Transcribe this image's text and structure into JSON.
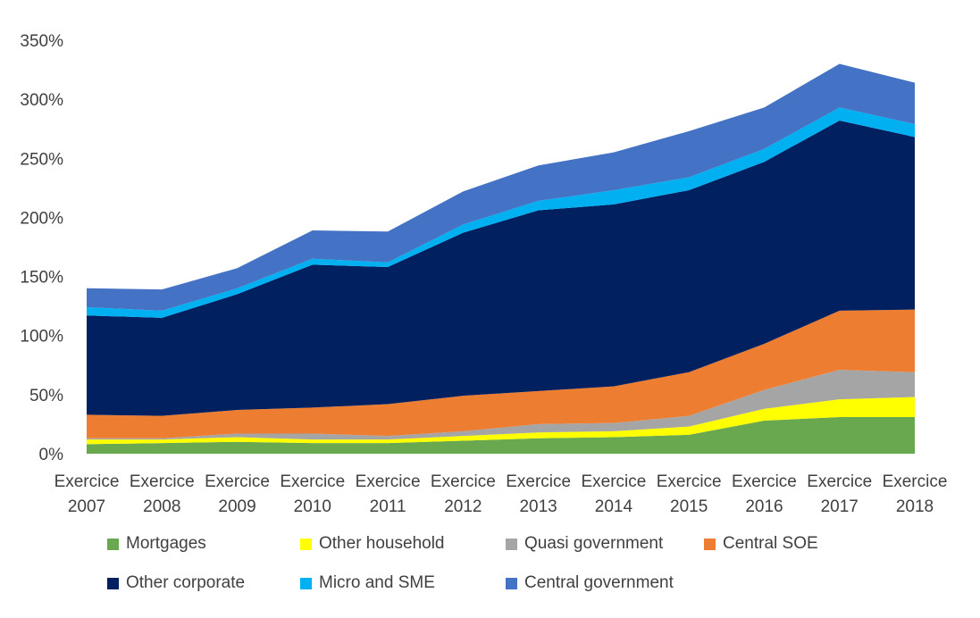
{
  "chart_data": {
    "type": "area",
    "stacked": true,
    "categories": [
      "Exercice 2007",
      "Exercice 2008",
      "Exercice 2009",
      "Exercice 2010",
      "Exercice 2011",
      "Exercice 2012",
      "Exercice 2013",
      "Exercice 2014",
      "Exercice 2015",
      "Exercice 2016",
      "Exercice 2017",
      "Exercice 2018"
    ],
    "category_lines": [
      [
        "Exercice",
        "2007"
      ],
      [
        "Exercice",
        "2008"
      ],
      [
        "Exercice",
        "2009"
      ],
      [
        "Exercice",
        "2010"
      ],
      [
        "Exercice",
        "2011"
      ],
      [
        "Exercice",
        "2012"
      ],
      [
        "Exercice",
        "2013"
      ],
      [
        "Exercice",
        "2014"
      ],
      [
        "Exercice",
        "2015"
      ],
      [
        "Exercice",
        "2016"
      ],
      [
        "Exercice",
        "2017"
      ],
      [
        "Exercice",
        "2018"
      ]
    ],
    "ylim": [
      0,
      350
    ],
    "yticks": [
      0,
      50,
      100,
      150,
      200,
      250,
      300,
      350
    ],
    "ytick_labels": [
      "0%",
      "50%",
      "100%",
      "150%",
      "200%",
      "250%",
      "300%",
      "350%"
    ],
    "legend_position": "bottom",
    "series": [
      {
        "name": "Mortgages",
        "color": "#6aa84f",
        "values": [
          8,
          9,
          10,
          9,
          9,
          11,
          13,
          14,
          16,
          28,
          31,
          31
        ]
      },
      {
        "name": "Other household",
        "color": "#ffff00",
        "values": [
          4,
          3,
          4,
          3,
          3,
          4,
          5,
          5,
          7,
          10,
          15,
          17
        ]
      },
      {
        "name": "Quasi government",
        "color": "#a5a5a5",
        "values": [
          1,
          1,
          3,
          5,
          3,
          4,
          7,
          7,
          9,
          16,
          25,
          21
        ]
      },
      {
        "name": "Central SOE",
        "color": "#ed7d31",
        "values": [
          20,
          19,
          20,
          22,
          27,
          30,
          28,
          31,
          37,
          39,
          50,
          53
        ]
      },
      {
        "name": "Other corporate",
        "color": "#002060",
        "values": [
          84,
          83,
          98,
          121,
          116,
          138,
          153,
          154,
          154,
          154,
          161,
          146
        ]
      },
      {
        "name": "Micro and SME",
        "color": "#00b0f0",
        "values": [
          7,
          6,
          5,
          5,
          4,
          7,
          8,
          12,
          11,
          11,
          11,
          11
        ]
      },
      {
        "name": "Central government",
        "color": "#4472c4",
        "values": [
          16,
          18,
          17,
          24,
          26,
          28,
          30,
          32,
          39,
          35,
          37,
          35
        ]
      }
    ]
  }
}
